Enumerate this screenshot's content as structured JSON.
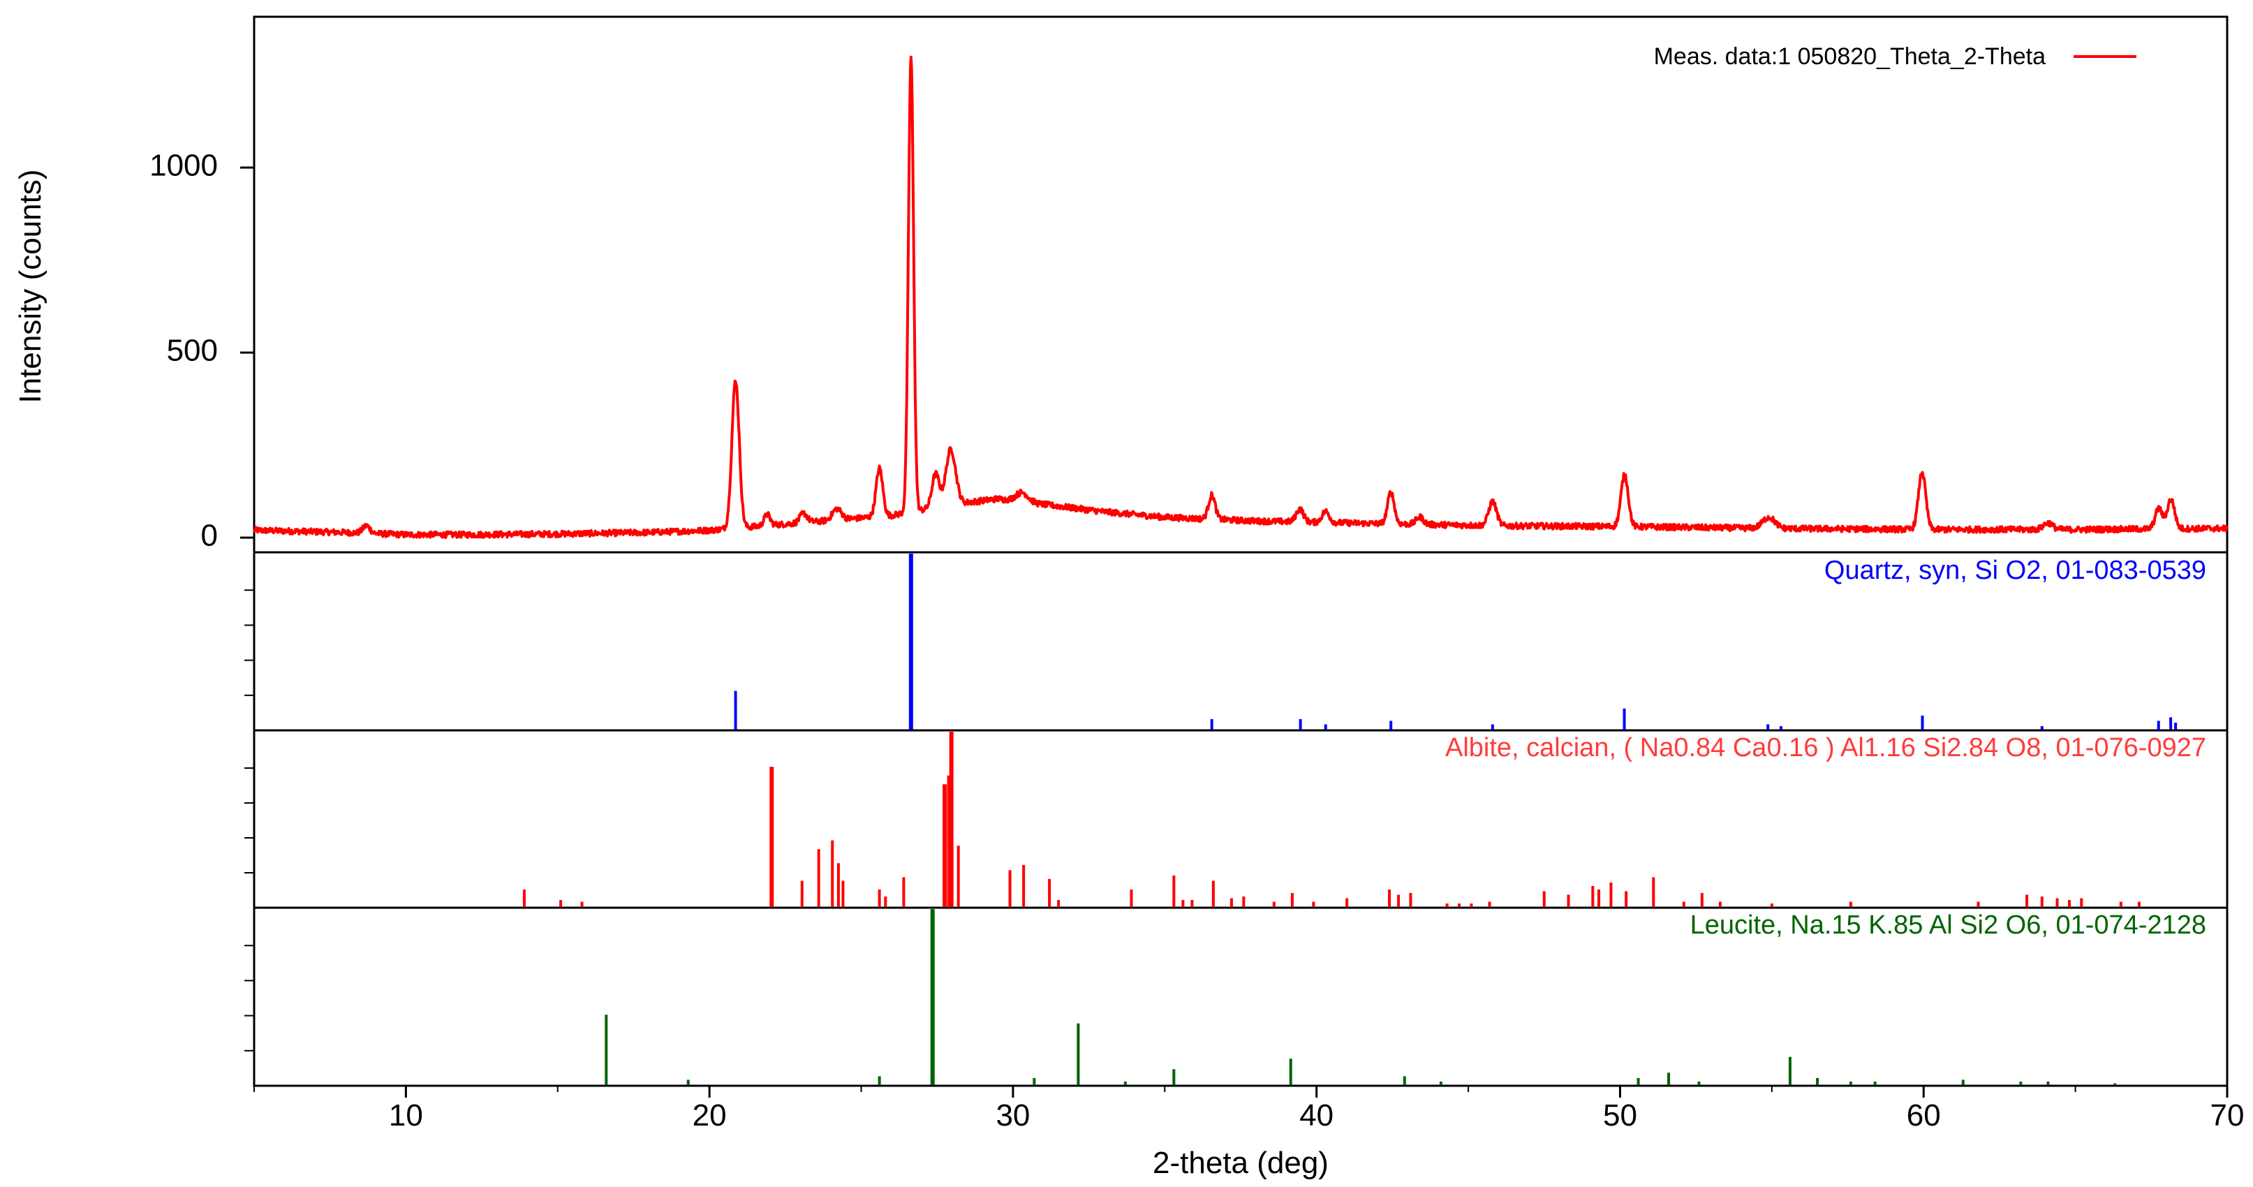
{
  "chart_data": {
    "type": "line",
    "xlabel": "2-theta (deg)",
    "ylabel": "Intensity (counts)",
    "xlim": [
      5,
      70
    ],
    "ylim": [
      0,
      1300
    ],
    "x_ticks": [
      10,
      20,
      30,
      40,
      50,
      60,
      70
    ],
    "y_ticks": [
      0,
      500,
      1000
    ],
    "grid": false,
    "legend": {
      "position": "top-right",
      "entries": [
        {
          "name": "Meas. data:1 050820_Theta_2-Theta",
          "color": "#ff0000"
        }
      ]
    },
    "series": [
      {
        "name": "Meas. data:1 050820_Theta_2-Theta",
        "color": "#ff0000",
        "baseline": [
          [
            5,
            20
          ],
          [
            8,
            14
          ],
          [
            10,
            8
          ],
          [
            12,
            8
          ],
          [
            15,
            10
          ],
          [
            18,
            14
          ],
          [
            20,
            20
          ],
          [
            23,
            40
          ],
          [
            26,
            60
          ],
          [
            28,
            90
          ],
          [
            29.5,
            105
          ],
          [
            31,
            90
          ],
          [
            33,
            70
          ],
          [
            35,
            55
          ],
          [
            38,
            45
          ],
          [
            42,
            38
          ],
          [
            46,
            32
          ],
          [
            50,
            30
          ],
          [
            55,
            25
          ],
          [
            60,
            22
          ],
          [
            65,
            22
          ],
          [
            70,
            25
          ]
        ],
        "peaks": [
          [
            8.7,
            20,
            0.12
          ],
          [
            20.86,
            400,
            0.12
          ],
          [
            21.9,
            30,
            0.1
          ],
          [
            23.1,
            25,
            0.12
          ],
          [
            24.2,
            30,
            0.15
          ],
          [
            25.6,
            130,
            0.11
          ],
          [
            26.64,
            1230,
            0.085
          ],
          [
            27.45,
            90,
            0.12
          ],
          [
            27.95,
            150,
            0.16
          ],
          [
            30.3,
            25,
            0.2
          ],
          [
            36.55,
            65,
            0.11
          ],
          [
            39.45,
            35,
            0.12
          ],
          [
            40.3,
            30,
            0.12
          ],
          [
            42.45,
            85,
            0.11
          ],
          [
            43.4,
            20,
            0.12
          ],
          [
            45.8,
            65,
            0.13
          ],
          [
            50.15,
            140,
            0.12
          ],
          [
            54.9,
            30,
            0.2
          ],
          [
            59.95,
            155,
            0.12
          ],
          [
            64.1,
            18,
            0.15
          ],
          [
            67.75,
            55,
            0.12
          ],
          [
            68.15,
            80,
            0.12
          ]
        ]
      }
    ],
    "reference_patterns": [
      {
        "name": "Quartz, syn, Si O2, 01-083-0539",
        "color": "#0000ff",
        "sticks": [
          [
            20.86,
            22
          ],
          [
            26.64,
            100
          ],
          [
            36.55,
            6
          ],
          [
            39.47,
            6
          ],
          [
            40.3,
            3
          ],
          [
            42.45,
            5
          ],
          [
            45.8,
            3
          ],
          [
            50.14,
            12
          ],
          [
            54.87,
            3
          ],
          [
            55.3,
            2
          ],
          [
            59.96,
            8
          ],
          [
            63.9,
            2
          ],
          [
            67.74,
            5
          ],
          [
            68.14,
            7
          ],
          [
            68.3,
            4
          ]
        ]
      },
      {
        "name": "Albite, calcian, ( Na0.84 Ca0.16 ) Al1.16 Si2.84 O8, 01-076-0927",
        "color": "#ff0000",
        "sticks": [
          [
            13.9,
            10
          ],
          [
            15.1,
            4
          ],
          [
            15.8,
            3
          ],
          [
            22.05,
            80
          ],
          [
            23.05,
            15
          ],
          [
            23.6,
            33
          ],
          [
            24.05,
            38
          ],
          [
            24.25,
            25
          ],
          [
            24.4,
            15
          ],
          [
            25.6,
            10
          ],
          [
            25.8,
            6
          ],
          [
            26.4,
            17
          ],
          [
            27.75,
            70
          ],
          [
            27.9,
            75
          ],
          [
            27.97,
            100
          ],
          [
            28.2,
            35
          ],
          [
            29.9,
            21
          ],
          [
            30.35,
            24
          ],
          [
            31.2,
            16
          ],
          [
            31.5,
            4
          ],
          [
            33.9,
            10
          ],
          [
            35.3,
            18
          ],
          [
            35.6,
            4
          ],
          [
            35.9,
            4
          ],
          [
            36.6,
            15
          ],
          [
            37.2,
            5
          ],
          [
            37.6,
            6
          ],
          [
            38.6,
            3
          ],
          [
            39.2,
            8
          ],
          [
            39.9,
            3
          ],
          [
            41.0,
            5
          ],
          [
            42.4,
            10
          ],
          [
            42.7,
            7
          ],
          [
            43.1,
            8
          ],
          [
            44.3,
            2
          ],
          [
            44.7,
            2
          ],
          [
            45.1,
            2
          ],
          [
            45.7,
            3
          ],
          [
            47.5,
            9
          ],
          [
            48.3,
            7
          ],
          [
            49.1,
            12
          ],
          [
            49.3,
            10
          ],
          [
            49.7,
            14
          ],
          [
            50.2,
            9
          ],
          [
            51.1,
            17
          ],
          [
            52.1,
            3
          ],
          [
            52.7,
            8
          ],
          [
            53.3,
            3
          ],
          [
            55.0,
            2
          ],
          [
            57.6,
            3
          ],
          [
            61.8,
            3
          ],
          [
            63.4,
            7
          ],
          [
            63.9,
            6
          ],
          [
            64.4,
            5
          ],
          [
            64.8,
            4
          ],
          [
            65.2,
            5
          ],
          [
            66.5,
            3
          ],
          [
            67.1,
            3
          ]
        ]
      },
      {
        "name": "Leucite, Na.15 K.85 Al Si2 O6, 01-074-2128",
        "color": "#006400",
        "sticks": [
          [
            16.6,
            40
          ],
          [
            19.3,
            3
          ],
          [
            25.6,
            5
          ],
          [
            27.35,
            100
          ],
          [
            30.7,
            4
          ],
          [
            32.15,
            35
          ],
          [
            33.7,
            2
          ],
          [
            35.3,
            9
          ],
          [
            39.15,
            15
          ],
          [
            42.9,
            5
          ],
          [
            44.1,
            2
          ],
          [
            50.6,
            4
          ],
          [
            51.6,
            7
          ],
          [
            52.6,
            2
          ],
          [
            55.6,
            16
          ],
          [
            56.5,
            4
          ],
          [
            57.6,
            2
          ],
          [
            58.4,
            2
          ],
          [
            61.3,
            3
          ],
          [
            63.2,
            2
          ],
          [
            64.1,
            2
          ],
          [
            66.3,
            1
          ]
        ]
      }
    ]
  }
}
